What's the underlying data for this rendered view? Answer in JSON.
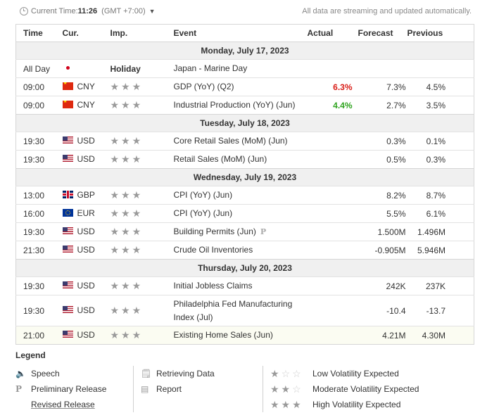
{
  "header": {
    "current_time_label": "Current Time:",
    "current_time": "11:26",
    "timezone": "(GMT +7:00)",
    "notice": "All data are streaming and updated automatically."
  },
  "columns": {
    "time": "Time",
    "currency": "Cur.",
    "importance": "Imp.",
    "event": "Event",
    "actual": "Actual",
    "forecast": "Forecast",
    "previous": "Previous"
  },
  "days": [
    {
      "label": "Monday, July 17, 2023",
      "events": [
        {
          "time": "All Day",
          "flag": "jp",
          "currency": "",
          "importance": "Holiday",
          "event": "Japan - Marine Day",
          "actual": "",
          "forecast": "",
          "previous": ""
        },
        {
          "time": "09:00",
          "flag": "cn",
          "currency": "CNY",
          "importance": 0,
          "event": "GDP (YoY) (Q2)",
          "actual": "6.3%",
          "actual_color": "#d91e18",
          "forecast": "7.3%",
          "previous": "4.5%"
        },
        {
          "time": "09:00",
          "flag": "cn",
          "currency": "CNY",
          "importance": 0,
          "event": "Industrial Production (YoY) (Jun)",
          "actual": "4.4%",
          "actual_color": "#2ea31e",
          "forecast": "2.7%",
          "previous": "3.5%"
        }
      ]
    },
    {
      "label": "Tuesday, July 18, 2023",
      "events": [
        {
          "time": "19:30",
          "flag": "us",
          "currency": "USD",
          "importance": 0,
          "event": "Core Retail Sales (MoM) (Jun)",
          "actual": "",
          "forecast": "0.3%",
          "previous": "0.1%"
        },
        {
          "time": "19:30",
          "flag": "us",
          "currency": "USD",
          "importance": 0,
          "event": "Retail Sales (MoM) (Jun)",
          "actual": "",
          "forecast": "0.5%",
          "previous": "0.3%"
        }
      ]
    },
    {
      "label": "Wednesday, July 19, 2023",
      "events": [
        {
          "time": "13:00",
          "flag": "gb",
          "currency": "GBP",
          "importance": 0,
          "event": "CPI (YoY) (Jun)",
          "actual": "",
          "forecast": "8.2%",
          "previous": "8.7%"
        },
        {
          "time": "16:00",
          "flag": "eu",
          "currency": "EUR",
          "importance": 0,
          "event": "CPI (YoY) (Jun)",
          "actual": "",
          "forecast": "5.5%",
          "previous": "6.1%"
        },
        {
          "time": "19:30",
          "flag": "us",
          "currency": "USD",
          "importance": 0,
          "event": "Building Permits (Jun)",
          "preliminary": true,
          "actual": "",
          "forecast": "1.500M",
          "previous": "1.496M"
        },
        {
          "time": "21:30",
          "flag": "us",
          "currency": "USD",
          "importance": 0,
          "event": "Crude Oil Inventories",
          "actual": "",
          "forecast": "-0.905M",
          "previous": "5.946M"
        }
      ]
    },
    {
      "label": "Thursday, July 20, 2023",
      "events": [
        {
          "time": "19:30",
          "flag": "us",
          "currency": "USD",
          "importance": 0,
          "event": "Initial Jobless Claims",
          "actual": "",
          "forecast": "242K",
          "previous": "237K"
        },
        {
          "time": "19:30",
          "flag": "us",
          "currency": "USD",
          "importance": 0,
          "event": "Philadelphia Fed Manufacturing Index (Jul)",
          "actual": "",
          "forecast": "-10.4",
          "previous": "-13.7"
        },
        {
          "time": "21:00",
          "flag": "us",
          "currency": "USD",
          "importance": 0,
          "event": "Existing Home Sales (Jun)",
          "actual": "",
          "forecast": "4.21M",
          "previous": "4.30M"
        }
      ]
    }
  ],
  "legend": {
    "title": "Legend",
    "speech": "Speech",
    "preliminary": "Preliminary Release",
    "revised": "Revised Release",
    "retrieving": "Retrieving Data",
    "report": "Report",
    "low": "Low Volatility Expected",
    "moderate": "Moderate Volatility Expected",
    "high": "High Volatility Expected"
  }
}
